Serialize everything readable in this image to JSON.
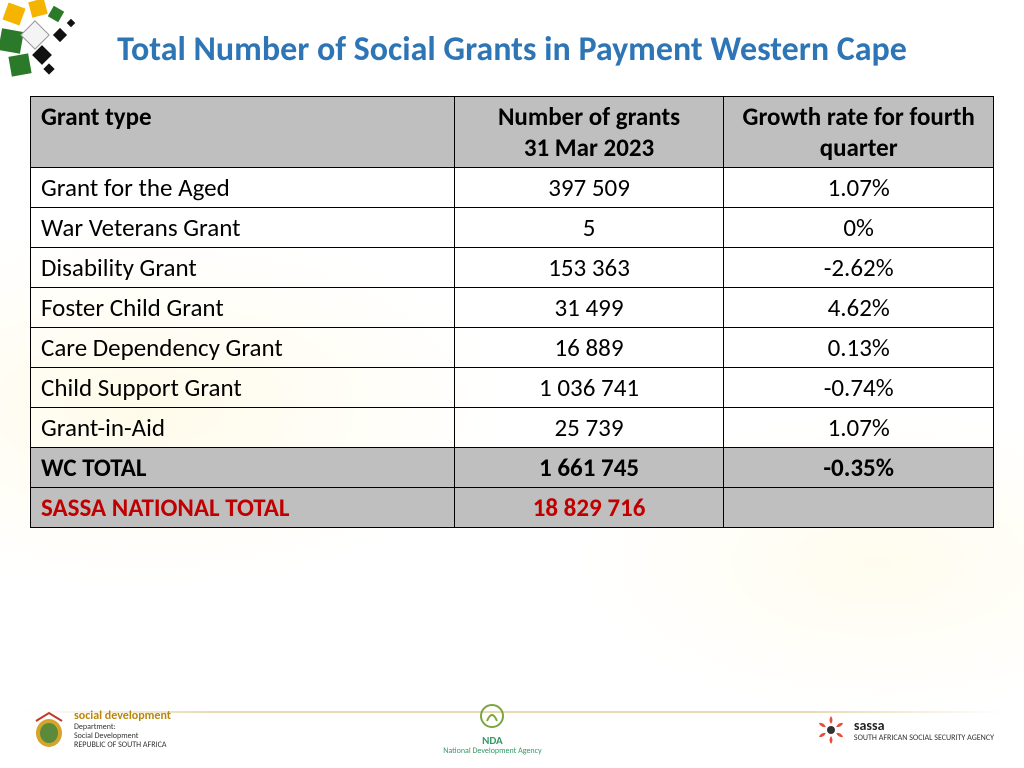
{
  "colors": {
    "title": "#2e75b6",
    "header_bg": "#bfbfbf",
    "border": "#000000",
    "text": "#000000",
    "national_text": "#c00000",
    "background": "#ffffff"
  },
  "title": "Total Number of Social Grants in Payment Western Cape",
  "table": {
    "columns": [
      "Grant type",
      "Number of grants\n31 Mar 2023",
      "Growth rate for  fourth quarter"
    ],
    "col_widths_pct": [
      44,
      28,
      28
    ],
    "rows": [
      {
        "name": "Grant for the Aged",
        "num": "397 509",
        "rate": "1.07%"
      },
      {
        "name": "War Veterans Grant",
        "num": "5",
        "rate": "0%"
      },
      {
        "name": "Disability Grant",
        "num": "153 363",
        "rate": "-2.62%"
      },
      {
        "name": "Foster Child Grant",
        "num": "31 499",
        "rate": "4.62%"
      },
      {
        "name": "Care Dependency Grant",
        "num": "16 889",
        "rate": "0.13%"
      },
      {
        "name": "Child Support Grant",
        "num": "1 036 741",
        "rate": "-0.74%"
      },
      {
        "name": "Grant-in-Aid",
        "num": "25 739",
        "rate": "1.07%"
      }
    ],
    "total_row": {
      "name": "WC TOTAL",
      "num": "1 661 745",
      "rate": "-0.35%"
    },
    "national_row": {
      "name": "SASSA NATIONAL TOTAL",
      "num": "18 829 716",
      "rate": ""
    }
  },
  "footer": {
    "left_label": "social development",
    "left_sub": "Department:\nSocial Development\nREPUBLIC OF SOUTH AFRICA",
    "center_label": "NDA",
    "center_sub": "National Development Agency",
    "right_label": "sassa",
    "right_sub": "SOUTH AFRICAN SOCIAL SECURITY AGENCY"
  }
}
